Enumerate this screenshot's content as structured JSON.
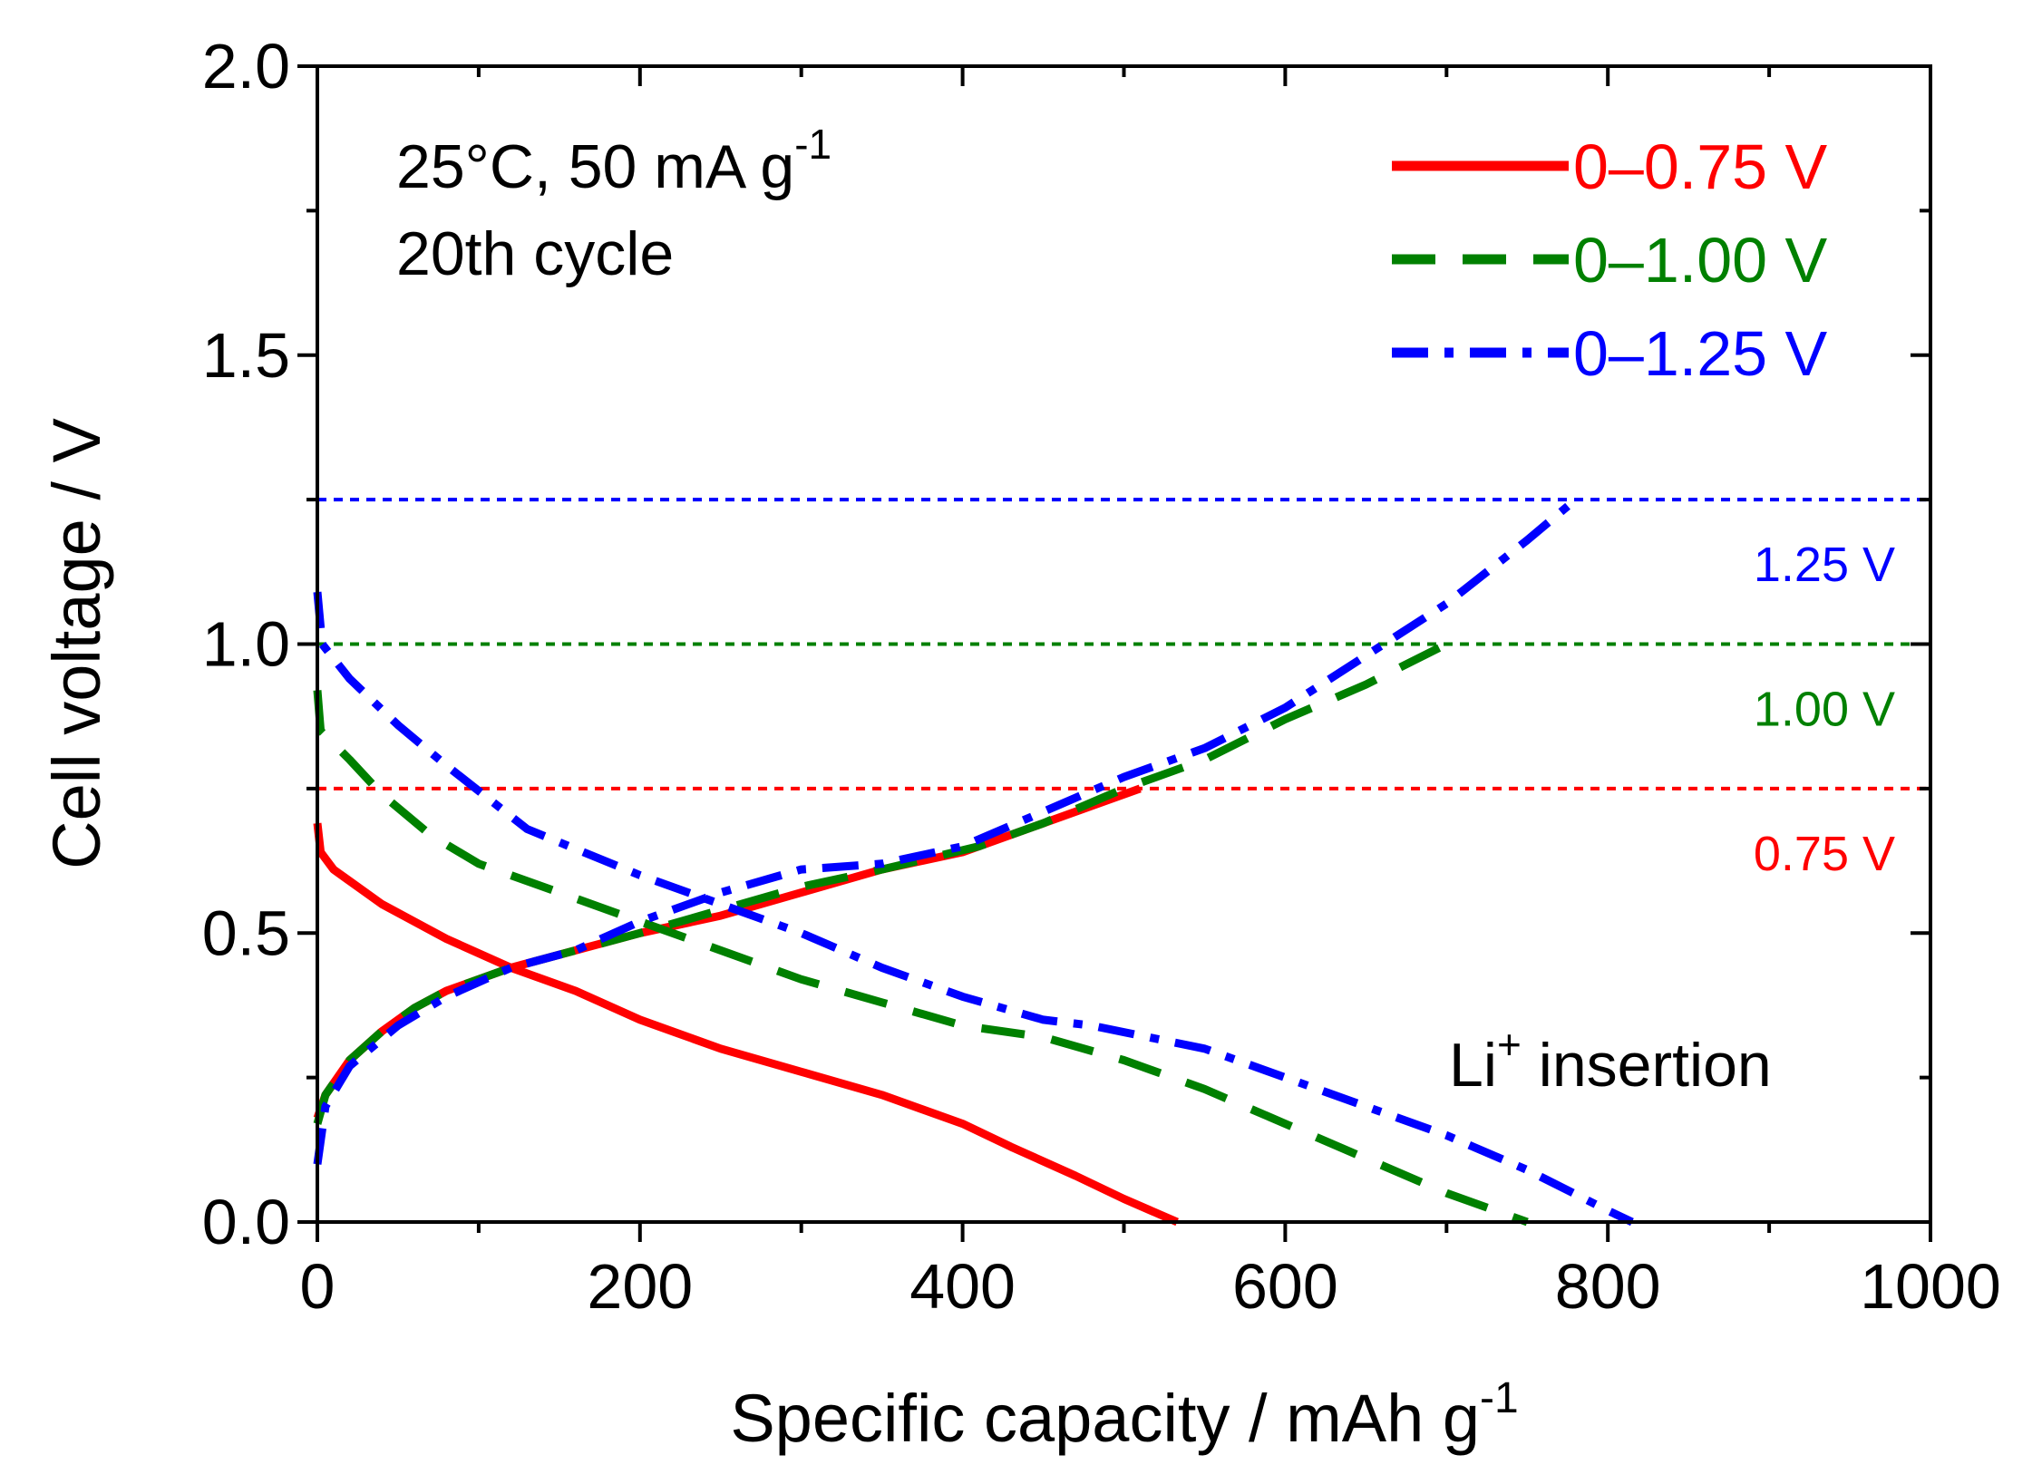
{
  "chart_data": {
    "type": "line",
    "title": "",
    "xlabel": "Specific capacity / mAh g",
    "xlabel_sup": "-1",
    "ylabel": "Cell voltage / V",
    "xlim": [
      0,
      1000
    ],
    "ylim": [
      0,
      2.0
    ],
    "xticks": [
      "0",
      "200",
      "400",
      "600",
      "800",
      "1000"
    ],
    "yticks": [
      "0.0",
      "0.5",
      "1.0",
      "1.5",
      "2.0"
    ],
    "grid": false,
    "legend_position": "top-right",
    "annotations": {
      "condition": "25°C, 50 mA g",
      "condition_sup": "-1",
      "cycle": "20th cycle",
      "insertion_pre": "Li",
      "insertion_sup": "+",
      "insertion_post": " insertion"
    },
    "cutoff_lines": [
      {
        "value": 1.25,
        "label": "1.25 V",
        "color": "#0000ff"
      },
      {
        "value": 1.0,
        "label": "1.00 V",
        "color": "#008000"
      },
      {
        "value": 0.75,
        "label": "0.75 V",
        "color": "#ff0000"
      }
    ],
    "series": [
      {
        "name": "0–0.75 V",
        "color": "#ff0000",
        "style": "solid",
        "discharge": [
          [
            0,
            0.69
          ],
          [
            2,
            0.64
          ],
          [
            10,
            0.61
          ],
          [
            40,
            0.55
          ],
          [
            80,
            0.49
          ],
          [
            120,
            0.44
          ],
          [
            160,
            0.4
          ],
          [
            200,
            0.35
          ],
          [
            250,
            0.3
          ],
          [
            300,
            0.26
          ],
          [
            350,
            0.22
          ],
          [
            400,
            0.17
          ],
          [
            430,
            0.13
          ],
          [
            470,
            0.08
          ],
          [
            500,
            0.04
          ],
          [
            533,
            0
          ]
        ],
        "charge": [
          [
            0,
            0.18
          ],
          [
            5,
            0.22
          ],
          [
            20,
            0.28
          ],
          [
            40,
            0.33
          ],
          [
            60,
            0.37
          ],
          [
            80,
            0.4
          ],
          [
            120,
            0.44
          ],
          [
            160,
            0.47
          ],
          [
            200,
            0.5
          ],
          [
            250,
            0.53
          ],
          [
            300,
            0.57
          ],
          [
            350,
            0.61
          ],
          [
            400,
            0.64
          ],
          [
            420,
            0.66
          ],
          [
            450,
            0.69
          ],
          [
            480,
            0.72
          ],
          [
            510,
            0.75
          ]
        ]
      },
      {
        "name": "0–1.00 V",
        "color": "#008000",
        "style": "dash",
        "discharge": [
          [
            0,
            0.92
          ],
          [
            2,
            0.85
          ],
          [
            20,
            0.8
          ],
          [
            40,
            0.74
          ],
          [
            70,
            0.67
          ],
          [
            100,
            0.62
          ],
          [
            150,
            0.57
          ],
          [
            200,
            0.52
          ],
          [
            250,
            0.47
          ],
          [
            300,
            0.42
          ],
          [
            350,
            0.38
          ],
          [
            400,
            0.34
          ],
          [
            450,
            0.32
          ],
          [
            500,
            0.28
          ],
          [
            550,
            0.23
          ],
          [
            600,
            0.17
          ],
          [
            650,
            0.11
          ],
          [
            700,
            0.05
          ],
          [
            750,
            0
          ]
        ],
        "charge": [
          [
            0,
            0.17
          ],
          [
            5,
            0.22
          ],
          [
            20,
            0.28
          ],
          [
            40,
            0.33
          ],
          [
            60,
            0.37
          ],
          [
            80,
            0.4
          ],
          [
            120,
            0.44
          ],
          [
            160,
            0.47
          ],
          [
            200,
            0.5
          ],
          [
            250,
            0.54
          ],
          [
            300,
            0.58
          ],
          [
            350,
            0.61
          ],
          [
            410,
            0.65
          ],
          [
            450,
            0.69
          ],
          [
            500,
            0.75
          ],
          [
            550,
            0.8
          ],
          [
            600,
            0.87
          ],
          [
            650,
            0.93
          ],
          [
            700,
            1.0
          ]
        ]
      },
      {
        "name": "0–1.25 V",
        "color": "#0000ff",
        "style": "dashdot",
        "discharge": [
          [
            0,
            1.09
          ],
          [
            3,
            1.0
          ],
          [
            20,
            0.94
          ],
          [
            50,
            0.86
          ],
          [
            80,
            0.79
          ],
          [
            130,
            0.68
          ],
          [
            200,
            0.6
          ],
          [
            250,
            0.55
          ],
          [
            300,
            0.5
          ],
          [
            350,
            0.44
          ],
          [
            400,
            0.39
          ],
          [
            450,
            0.35
          ],
          [
            480,
            0.34
          ],
          [
            550,
            0.3
          ],
          [
            600,
            0.25
          ],
          [
            650,
            0.2
          ],
          [
            700,
            0.15
          ],
          [
            750,
            0.09
          ],
          [
            800,
            0.02
          ],
          [
            815,
            0
          ]
        ],
        "charge": [
          [
            0,
            0.1
          ],
          [
            5,
            0.2
          ],
          [
            20,
            0.27
          ],
          [
            50,
            0.34
          ],
          [
            80,
            0.39
          ],
          [
            120,
            0.44
          ],
          [
            160,
            0.47
          ],
          [
            200,
            0.52
          ],
          [
            250,
            0.57
          ],
          [
            300,
            0.61
          ],
          [
            350,
            0.62
          ],
          [
            400,
            0.65
          ],
          [
            450,
            0.71
          ],
          [
            500,
            0.77
          ],
          [
            550,
            0.82
          ],
          [
            600,
            0.89
          ],
          [
            650,
            0.98
          ],
          [
            700,
            1.07
          ],
          [
            750,
            1.18
          ],
          [
            780,
            1.25
          ]
        ]
      }
    ]
  }
}
